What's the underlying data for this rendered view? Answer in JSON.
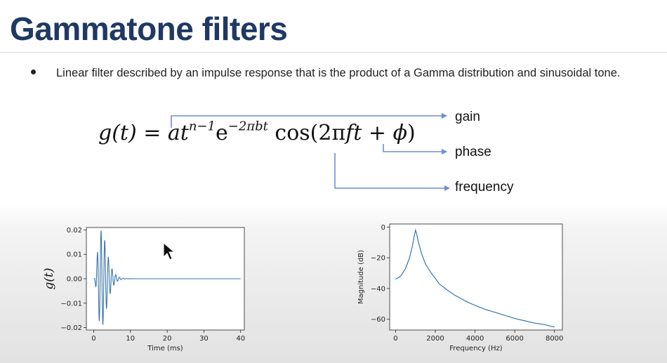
{
  "slide": {
    "title": "Gammatone filters",
    "bullet": "Linear filter described by an impulse response that is the product of a Gamma distribution and sinusoidal tone."
  },
  "formula": {
    "lhs": "g(t) = ",
    "a": "a",
    "t": "t",
    "t_exp": "n−1",
    "e": "e",
    "e_exp": "−2πbt",
    "cos_open": " cos(2π",
    "ft": "ft",
    "plus": " + ",
    "phi": "ϕ",
    "close": ")"
  },
  "annotations": {
    "gain": "gain",
    "phase": "phase",
    "frequency": "frequency"
  },
  "colors": {
    "title": "#1f3864",
    "arrow": "#6b8fd6",
    "plot_line": "#3a75a8"
  },
  "chart_data": [
    {
      "type": "line",
      "title": "",
      "xlabel": "Time (ms)",
      "ylabel": "g(t)",
      "xlim": [
        -2,
        41
      ],
      "ylim": [
        -0.021,
        0.021
      ],
      "xticks": [
        0,
        10,
        20,
        30,
        40
      ],
      "xtick_labels": [
        "0",
        "10",
        "20",
        "30",
        "40"
      ],
      "yticks": [
        -0.02,
        -0.01,
        0.0,
        0.01,
        0.02
      ],
      "ytick_labels": [
        "−0.02",
        "−0.01",
        "0.00",
        "0.01",
        "0.02"
      ],
      "grid": false,
      "series": [
        {
          "model": "a*t^(n-1)*exp(-2*pi*b*t)*cos(2*pi*f*t)",
          "params": {
            "a": 0.0197,
            "n": 4,
            "b": 0.1,
            "f": 1.0,
            "t_max": 40
          }
        }
      ]
    },
    {
      "type": "line",
      "title": "",
      "xlabel": "Frequency (Hz)",
      "ylabel": "Magnitude (dB)",
      "xlim": [
        -300,
        8400
      ],
      "ylim": [
        -67,
        2
      ],
      "xticks": [
        0,
        2000,
        4000,
        6000,
        8000
      ],
      "xtick_labels": [
        "0",
        "2000",
        "4000",
        "6000",
        "8000"
      ],
      "yticks": [
        0,
        -20,
        -40,
        -60
      ],
      "ytick_labels": [
        "0",
        "−20",
        "−40",
        "−60"
      ],
      "grid": false,
      "series": [
        {
          "x": [
            0,
            250,
            500,
            700,
            850,
            950,
            1000,
            1050,
            1150,
            1300,
            1500,
            1800,
            2200,
            2600,
            3000,
            3500,
            4000,
            4500,
            5000,
            5500,
            6000,
            6500,
            7000,
            7500,
            7800,
            8000
          ],
          "y": [
            -34,
            -32,
            -27,
            -20,
            -12,
            -5,
            -2,
            -4,
            -10,
            -17,
            -24,
            -30,
            -37,
            -41,
            -44.5,
            -48,
            -51,
            -53.5,
            -55.5,
            -57.5,
            -59.5,
            -61,
            -62.5,
            -63.5,
            -64.5,
            -65
          ]
        }
      ]
    }
  ]
}
